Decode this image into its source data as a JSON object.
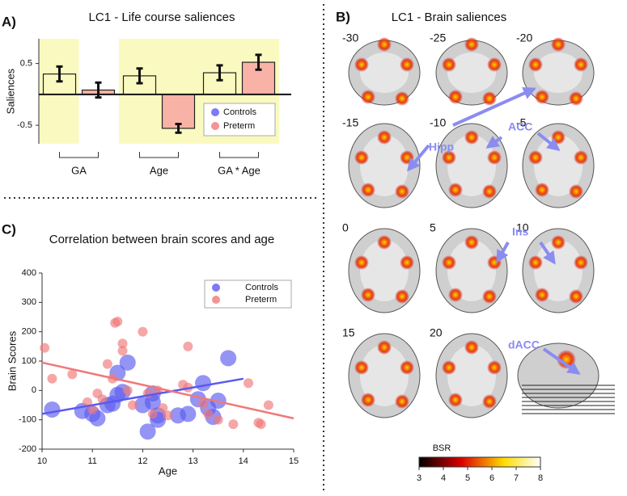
{
  "panel_labels": [
    "A)",
    "B)",
    "C)"
  ],
  "chart_data": [
    {
      "type": "bar",
      "title": "LC1 - Life course saliences",
      "y_label": "Saliences",
      "categories": [
        "GA",
        "Age",
        "GA * Age"
      ],
      "series": [
        {
          "name": "Controls",
          "color": "#5a5af0",
          "bar_fill": "none",
          "values": [
            0.33,
            0.3,
            0.35
          ],
          "errors": [
            0.12,
            0.12,
            0.12
          ]
        },
        {
          "name": "Preterm",
          "color": "#f07878",
          "bar_fill": "#f9b3a6",
          "values": [
            0.07,
            -0.55,
            0.52
          ],
          "errors": [
            0.12,
            0.07,
            0.12
          ]
        }
      ],
      "ylim": [
        -0.8,
        0.9
      ],
      "yticks": [
        -0.5,
        0.5
      ],
      "highlight_color": "#fafac0"
    },
    {
      "type": "scatter",
      "title": "Correlation between brain scores and age",
      "x_label": "Age",
      "y_label": "Brain Scores",
      "xlim": [
        10,
        15
      ],
      "xticks": [
        10,
        11,
        12,
        13,
        14,
        15
      ],
      "ylim": [
        -200,
        400
      ],
      "yticks": [
        -200,
        -100,
        0,
        100,
        200,
        300,
        400
      ],
      "series": [
        {
          "name": "Controls",
          "color": "#5a5af0",
          "x": [
            10.2,
            10.8,
            11.0,
            11.1,
            11.4,
            11.5,
            11.6,
            11.7,
            11.5,
            12.1,
            12.2,
            12.2,
            12.3,
            12.3,
            12.7,
            12.9,
            13.1,
            13.2,
            13.3,
            13.4,
            13.5,
            13.7,
            11.3,
            12.0
          ],
          "y": [
            -65,
            -70,
            -80,
            -95,
            -45,
            -15,
            -5,
            95,
            60,
            -140,
            -10,
            -40,
            -85,
            -100,
            -85,
            -80,
            -30,
            25,
            -60,
            -90,
            -35,
            110,
            -50,
            -50
          ],
          "fit": {
            "x": [
              10,
              14
            ],
            "y": [
              -80,
              40
            ]
          }
        },
        {
          "name": "Preterm",
          "color": "#f07878",
          "x": [
            10.05,
            10.2,
            10.6,
            10.9,
            11.0,
            11.1,
            11.3,
            11.4,
            11.45,
            11.5,
            11.6,
            11.6,
            11.7,
            11.8,
            12.0,
            12.1,
            12.3,
            12.4,
            12.5,
            12.8,
            12.9,
            12.9,
            13.2,
            13.3,
            13.5,
            13.8,
            14.1,
            14.3,
            14.35,
            14.5,
            11.2,
            12.2
          ],
          "y": [
            145,
            40,
            55,
            -40,
            -65,
            -10,
            90,
            40,
            230,
            235,
            160,
            135,
            0,
            -50,
            200,
            -10,
            0,
            -60,
            -85,
            20,
            10,
            150,
            -45,
            -80,
            -100,
            -115,
            25,
            -110,
            -115,
            -50,
            -30,
            -80
          ],
          "fit": {
            "x": [
              10,
              15
            ],
            "y": [
              95,
              -95
            ]
          }
        }
      ]
    }
  ],
  "brain_panel": {
    "title": "LC1 - Brain saliences",
    "slices": [
      -30,
      -25,
      -20,
      -15,
      -10,
      -5,
      0,
      5,
      10,
      15,
      20
    ],
    "annotations": [
      "Hipp",
      "ACC",
      "Ins",
      "dACC"
    ],
    "colorbar": {
      "label": "BSR",
      "lim": [
        3,
        8
      ],
      "ticks": [
        3,
        4,
        5,
        6,
        7,
        8
      ]
    }
  }
}
